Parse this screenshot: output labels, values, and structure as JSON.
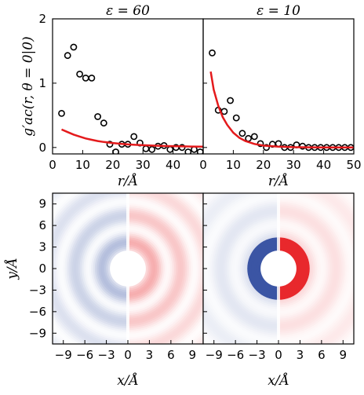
{
  "chart_data": [
    {
      "type": "scatter",
      "title": "ε = 60",
      "xlabel": "r/Å",
      "ylabel": "g′ac(r, θ = 0|0)",
      "xlim": [
        0,
        50
      ],
      "ylim": [
        -0.1,
        2.0
      ],
      "xticks": [
        "0",
        "10",
        "20",
        "30",
        "40"
      ],
      "yticks": [
        "0",
        "1",
        "2"
      ],
      "line_color": "#e41a1c",
      "series": [
        {
          "kind": "markers",
          "x": [
            3,
            5,
            7,
            9,
            11,
            13,
            15,
            17,
            19,
            21,
            23,
            25,
            27,
            29,
            31,
            33,
            35,
            37,
            39,
            41,
            43,
            45,
            47,
            49
          ],
          "y": [
            0.53,
            1.43,
            1.56,
            1.14,
            1.08,
            1.08,
            0.48,
            0.38,
            0.05,
            -0.07,
            0.05,
            0.05,
            0.17,
            0.07,
            -0.02,
            -0.03,
            0.02,
            0.03,
            -0.03,
            0.0,
            0.0,
            -0.07,
            -0.03,
            -0.07
          ]
        },
        {
          "kind": "line",
          "x": [
            3,
            5,
            7,
            9,
            11,
            13,
            15,
            17,
            20,
            23,
            26,
            30,
            34,
            38,
            42,
            46,
            50
          ],
          "y": [
            0.28,
            0.24,
            0.2,
            0.17,
            0.14,
            0.12,
            0.1,
            0.085,
            0.07,
            0.055,
            0.045,
            0.035,
            0.028,
            0.022,
            0.018,
            0.015,
            0.012
          ]
        }
      ]
    },
    {
      "type": "scatter",
      "title": "ε = 10",
      "xlabel": "r/Å",
      "xlim": [
        0,
        50
      ],
      "ylim": [
        -0.1,
        2.0
      ],
      "xticks": [
        "0",
        "10",
        "20",
        "30",
        "40",
        "50"
      ],
      "line_color": "#e41a1c",
      "series": [
        {
          "kind": "markers",
          "x": [
            3,
            5,
            7,
            9,
            11,
            13,
            15,
            17,
            19,
            21,
            23,
            25,
            27,
            29,
            31,
            33,
            35,
            37,
            39,
            41,
            43,
            45,
            47,
            49
          ],
          "y": [
            1.47,
            0.58,
            0.56,
            0.73,
            0.46,
            0.22,
            0.14,
            0.17,
            0.06,
            0.0,
            0.05,
            0.06,
            0.0,
            0.0,
            0.04,
            0.02,
            0.0,
            0.0,
            0.0,
            0.0,
            0.0,
            0.0,
            0.0,
            0.0
          ]
        },
        {
          "kind": "line",
          "x": [
            2.5,
            3.5,
            5,
            6.5,
            8,
            10,
            12,
            14,
            17,
            20,
            25,
            30,
            40,
            50
          ],
          "y": [
            1.18,
            0.9,
            0.65,
            0.47,
            0.35,
            0.23,
            0.15,
            0.1,
            0.055,
            0.03,
            0.012,
            0.005,
            0.001,
            0.0
          ]
        }
      ]
    },
    {
      "type": "heatmap",
      "xlabel": "x/Å",
      "ylabel": "y/Å",
      "xlim": [
        -10.5,
        10.5
      ],
      "ylim": [
        -10.5,
        10.5
      ],
      "xticks": [
        "−9",
        "−6",
        "−3",
        "0",
        "3",
        "6",
        "9"
      ],
      "yticks": [
        "9",
        "6",
        "3",
        "0",
        "−3",
        "−6",
        "−9"
      ],
      "excluded_radius": 2.5,
      "peak_radius": 3.8,
      "intensity": 0.38,
      "negative_color": "#3b55a4",
      "positive_color": "#e8282c"
    },
    {
      "type": "heatmap",
      "xlabel": "x/Å",
      "xlim": [
        -10.5,
        10.5
      ],
      "ylim": [
        -10.5,
        10.5
      ],
      "xticks": [
        "−9",
        "−6",
        "−3",
        "0",
        "3",
        "6",
        "9"
      ],
      "excluded_radius": 2.5,
      "peak_radius": 3.3,
      "intensity": 1.0,
      "negative_color": "#3b55a4",
      "positive_color": "#e8282c"
    }
  ]
}
